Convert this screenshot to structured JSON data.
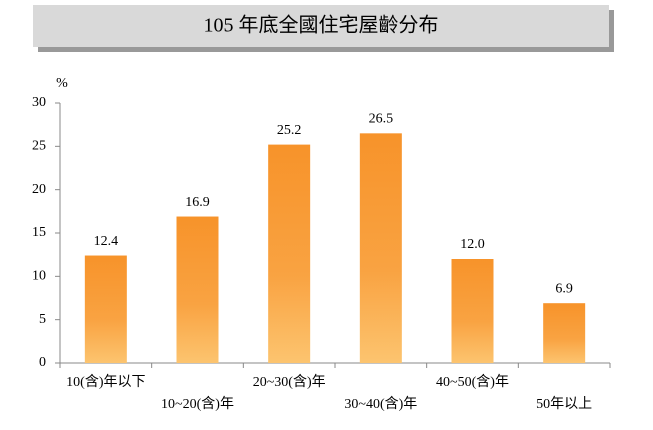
{
  "chart_data": {
    "type": "bar",
    "title": "105 年底全國住宅屋齡分布",
    "y_label": "%",
    "categories": [
      "10(含)年以下",
      "10~20(含)年",
      "20~30(含)年",
      "30~40(含)年",
      "40~50(含)年",
      "50年以上"
    ],
    "values": [
      12.4,
      16.9,
      25.2,
      26.5,
      12.0,
      6.9
    ],
    "value_labels": [
      "12.4",
      "16.9",
      "25.2",
      "26.5",
      "12.0",
      "6.9"
    ],
    "color": "#f7962b",
    "ylim": [
      0,
      30
    ],
    "yticks": [
      0,
      5,
      10,
      15,
      20,
      25,
      30
    ],
    "grid": false
  }
}
